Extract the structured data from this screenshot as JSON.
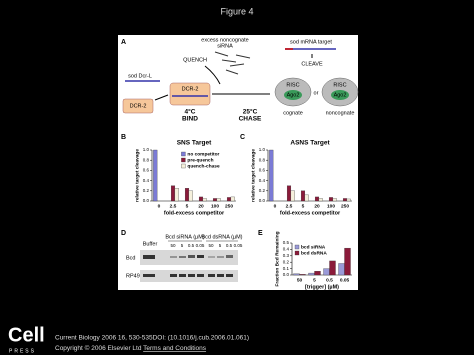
{
  "header": {
    "title": "Figure 4"
  },
  "panels": {
    "a": {
      "label": "A",
      "excess_line1": "excess noncognate",
      "excess_line2": "siRNA",
      "quench": "QUENCH",
      "target": "sod mRNA target",
      "cleave": "CLEAVE",
      "dcr_l": "sod Dcr-L",
      "dcr2_free": "DCR-2",
      "dcr2_bound": "DCR-2",
      "bind_temp": "4°C",
      "bind": "BIND",
      "chase_temp": "25°C",
      "chase": "CHASE",
      "risc1": "RISC",
      "ago1": "Ago2",
      "or": "or",
      "risc2": "RISC",
      "ago2": "Ago2",
      "cognate": "cognate",
      "noncognate": "noncognate"
    },
    "d": {
      "label": "D",
      "buffer": "Buffer",
      "sirna": "Bcd siRNA (µM)",
      "dsrna": "Bcd dsRNA (µM)",
      "sirna_lanes": [
        "50",
        "5",
        "0.5",
        "0.05"
      ],
      "dsrna_lanes": [
        "50",
        "5",
        "0.5",
        "0.05"
      ],
      "bcd": "Bcd",
      "rp49": "RP49"
    }
  },
  "chart_data": [
    {
      "panel": "B",
      "type": "bar",
      "title": "SNS Target",
      "y_label": "relative target cleavage",
      "x_label": "fold-excess competitor",
      "categories": [
        "0",
        "2.5",
        "5",
        "20",
        "100",
        "250"
      ],
      "series": [
        {
          "name": "no competitor",
          "color": "#7b7bd6",
          "values": [
            1.0,
            null,
            null,
            null,
            null,
            null
          ]
        },
        {
          "name": "pre-quench",
          "color": "#8b1a3a",
          "values": [
            null,
            0.3,
            0.25,
            0.08,
            0.05,
            0.07
          ]
        },
        {
          "name": "quench-chase",
          "color": "#f5f0dc",
          "values": [
            null,
            0.25,
            0.2,
            0.05,
            0.05,
            0.08
          ]
        }
      ],
      "ylim": [
        0,
        1
      ],
      "yticks": [
        {
          "value": 0,
          "label": "0.0"
        },
        {
          "value": 0.2,
          "label": "0.2"
        },
        {
          "value": 0.4,
          "label": "0.4"
        },
        {
          "value": 0.6,
          "label": "0.6"
        },
        {
          "value": 0.8,
          "label": "0.8"
        },
        {
          "value": 1,
          "label": "1.0"
        }
      ],
      "legend": "upper right"
    },
    {
      "panel": "C",
      "type": "bar",
      "title": "ASNS Target",
      "y_label": "relative target cleavage",
      "x_label": "fold-excess competitor",
      "categories": [
        "0",
        "2.5",
        "5",
        "20",
        "100",
        "250"
      ],
      "series": [
        {
          "name": "no competitor",
          "color": "#7b7bd6",
          "values": [
            1.0,
            null,
            null,
            null,
            null,
            null
          ]
        },
        {
          "name": "pre-quench",
          "color": "#8b1a3a",
          "values": [
            null,
            0.3,
            0.2,
            0.08,
            0.07,
            0.05
          ]
        },
        {
          "name": "quench-chase",
          "color": "#f5f0dc",
          "values": [
            null,
            0.2,
            0.12,
            0.05,
            0.05,
            0.04
          ]
        }
      ],
      "ylim": [
        0,
        1
      ],
      "yticks": [
        {
          "value": 0,
          "label": "0.0"
        },
        {
          "value": 0.2,
          "label": "0.2"
        },
        {
          "value": 0.4,
          "label": "0.4"
        },
        {
          "value": 0.6,
          "label": "0.6"
        },
        {
          "value": 0.8,
          "label": "0.8"
        },
        {
          "value": 1,
          "label": "1.0"
        }
      ]
    },
    {
      "panel": "E",
      "type": "bar",
      "y_label": "Fraction Bcd Remaining",
      "x_label": "[trigger] (µM)",
      "categories": [
        "50",
        "5",
        "0.5",
        "0.05"
      ],
      "series": [
        {
          "name": "bcd siRNA",
          "color": "#9a9ad8",
          "values": [
            0.02,
            0.03,
            0.1,
            0.18
          ]
        },
        {
          "name": "bcd dsRNA",
          "color": "#8b1a3a",
          "values": [
            0.01,
            0.06,
            0.22,
            0.42
          ]
        }
      ],
      "ylim": [
        0,
        0.5
      ],
      "yticks": [
        {
          "value": 0,
          "label": "0.0"
        },
        {
          "value": 0.1,
          "label": "0.1"
        },
        {
          "value": 0.2,
          "label": "0.2"
        },
        {
          "value": 0.3,
          "label": "0.3"
        },
        {
          "value": 0.4,
          "label": "0.4"
        },
        {
          "value": 0.5,
          "label": "0.5"
        }
      ],
      "legend": "upper left"
    }
  ],
  "footer": {
    "logo": "Cell",
    "logo_sub": "PRESS",
    "citation": "Current Biology 2006 16, 530-535DOI: (10.1016/j.cub.2006.01.061)",
    "copyright": "Copyright © 2006 Elsevier Ltd",
    "terms": "Terms and Conditions"
  }
}
